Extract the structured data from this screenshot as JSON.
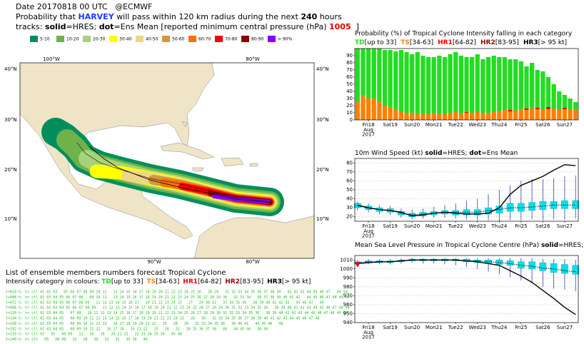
{
  "header": {
    "line1": "Date 20170818 00 UTC   @ECMWF",
    "line2": [
      "Probability that ",
      "HARVEY",
      " will pass within 120 km radius during the next ",
      "240",
      " hours"
    ],
    "line3": [
      "tracks: ",
      "solid",
      "=HRES; ",
      "dot",
      "=Ens Mean [reported minimum central pressure (hPa) ",
      "1005",
      "  ]"
    ]
  },
  "map_legend": [
    {
      "label": "5-10",
      "color": "#008f5c"
    },
    {
      "label": "10-20",
      "color": "#6fb24a"
    },
    {
      "label": "20-30",
      "color": "#a6d27a"
    },
    {
      "label": "30-40",
      "color": "#ffff00"
    },
    {
      "label": "40-50",
      "color": "#ecd68a"
    },
    {
      "label": "50-60",
      "color": "#d9953a"
    },
    {
      "label": "60-70",
      "color": "#ff7000"
    },
    {
      "label": "70-80",
      "color": "#ff0000"
    },
    {
      "label": "80-90",
      "color": "#8b0000"
    },
    {
      "label": "> 90%",
      "color": "#8a00ff"
    }
  ],
  "map": {
    "top_labels": [
      "100°W",
      "80°W"
    ],
    "bottom_labels": [
      "90°W",
      "80°W"
    ],
    "lat_labels": [
      "40°N",
      "30°N",
      "20°N",
      "10°N"
    ]
  },
  "ensemble": {
    "title": "List of ensemble members numbers forecast Tropical Cyclone",
    "legend_prefix": "Intensity category in colours: ",
    "legend": [
      {
        "name": "TD",
        "range": "[up to 33]",
        "color": "#22dd22"
      },
      {
        "name": "TS",
        "range": "[34-63]",
        "color": "#ff8000"
      },
      {
        "name": "HR1",
        "range": "[64-82]",
        "color": "#ff0000"
      },
      {
        "name": "HR2",
        "range": "[83-95]",
        "color": "#990000"
      },
      {
        "name": "HR3",
        "range": "[> 95 kt]",
        "color": "#000000"
      }
    ],
    "rows": [
      "t+024 h: hr ctl 01 02 03   05 06 07 08 09 10 11   13 14 15 16 17 18 19 20 21 22 23 24 25 26   28 29   31 32 33 34 35 36 37 38 39   41 42 43 44 45 46 47   49 50",
      "t+048 h: hr ctl 02 03 04 05 06 07 08   09 10 11   13 14 15 16 17 18 19 20 21 22 23 24 25 26 27 28 29 30   32 33 34   36 37 38 39 40 41 42   44 45 46 47 48 49 50",
      "t+072 h: hr ctl 02 03 04 05 06 07 08 09   11 12 13 14 15 16 17   20 21 22 23 24 25   27   29 30 31   33 34 35 36   38 39 40 41 42 43   45 46 47   49",
      "t+096 h: hr ctl 01 02 03 04 05 06 07 08 09   11 12 13 14 15 16 17 18 19 20 21 22 23 24 25 26 27 28 29 30 31 32 33 34 35 36   38 39 40 41 42 43 44 45 46 47 48 49",
      "t+120 h: hr ctl 02 03 04 05   07 08   10 11 12 13 14 15 16 17 18 19 20 21 22 23 24 25 26 27 28 29 30 31 32 33 34 35 36   38 39 40 41 42 43 44 45 46 47 48 49 50",
      "t+144 h: hr ctl 02 03 04 05   08 09 10 11 12 13 14 15 16 17 18 19 20 21 22 23 24 25   28   30   32 33 34 35 36 37 38 39 40 41 42 43 44 45 46 47 48",
      "t+168 h: hr ctl 02 03 04 05   08 09 10 11 12 13   16 17 18 19 20 21 22   25   28   30   32 33 34 35 36   39 40 41   44 45 46   48",
      "t+192 h: hr ctl 02 03 04 05   08 09 10 11 12   16 17 18   20 21 22   25   28   32   34 35 36 37 38   40   44 45 46   48 49",
      "t+216 h: hr ctl 02   05   08 09   12   16   18   20 21 22   32 33 34 35 36   45 48",
      "t+240 h: hr ctl   05   08 09   12   18   20   22   32   35 36   48"
    ]
  },
  "chart_data": [
    {
      "type": "bar",
      "title": "Probability (%) of Tropical Cyclone Intensity falling in each category",
      "legend": [
        {
          "name": "TD",
          "range": "[up to 33]",
          "color": "#22dd22"
        },
        {
          "name": "TS",
          "range": "[34-63]",
          "color": "#ff8000"
        },
        {
          "name": "HR1",
          "range": "[64-82]",
          "color": "#ff0000"
        },
        {
          "name": "HR2",
          "range": "[83-95]",
          "color": "#990000"
        },
        {
          "name": "HR3",
          "range": "[> 95 kt]",
          "color": "#000000"
        }
      ],
      "stacked": true,
      "x": [
        0,
        6,
        12,
        18,
        24,
        30,
        36,
        42,
        48,
        54,
        60,
        66,
        72,
        78,
        84,
        90,
        96,
        102,
        108,
        114,
        120,
        126,
        132,
        138,
        144,
        150,
        156,
        162,
        168,
        174,
        180,
        186,
        192,
        198,
        204,
        210,
        216,
        222,
        228,
        234,
        240
      ],
      "series": [
        {
          "color": "#ff8000",
          "values": [
            25,
            35,
            30,
            30,
            25,
            20,
            18,
            15,
            12,
            10,
            10,
            8,
            9,
            8,
            10,
            8,
            9,
            10,
            12,
            8,
            10,
            10,
            12,
            10,
            10,
            12,
            12,
            14,
            12,
            13,
            15,
            14,
            16,
            15,
            14,
            15,
            16,
            14,
            15,
            14,
            15
          ]
        },
        {
          "color": "#ff0000",
          "values": [
            0,
            0,
            0,
            0,
            0,
            0,
            0,
            0,
            0,
            0,
            0,
            0,
            0,
            0,
            0,
            0,
            0,
            0,
            0,
            0,
            1,
            0,
            0,
            0,
            0,
            0,
            0,
            0,
            2,
            0,
            0,
            2,
            0,
            2,
            0,
            3,
            0,
            0,
            2,
            0,
            0
          ]
        },
        {
          "color": "#22dd22",
          "values": [
            75,
            65,
            70,
            70,
            75,
            78,
            80,
            81,
            86,
            85,
            82,
            87,
            81,
            80,
            78,
            82,
            79,
            82,
            83,
            82,
            77,
            78,
            80,
            75,
            78,
            78,
            76,
            74,
            71,
            72,
            67,
            59,
            64,
            53,
            54,
            42,
            34,
            26,
            18,
            16,
            10
          ]
        }
      ],
      "xlim": [
        -3,
        243
      ],
      "xticks": [
        {
          "value": 12,
          "label": "Fri18"
        },
        {
          "value": 36,
          "label": "Sat19"
        },
        {
          "value": 60,
          "label": "Sun20",
          "color": "#ff0000"
        },
        {
          "value": 84,
          "label": "Mon21"
        },
        {
          "value": 108,
          "label": "Tue22"
        },
        {
          "value": 132,
          "label": "Wed23"
        },
        {
          "value": 156,
          "label": "Thu24"
        },
        {
          "value": 180,
          "label": "Fri25"
        },
        {
          "value": 204,
          "label": "Sat26"
        },
        {
          "value": 228,
          "label": "Sun27",
          "color": "#ff0000"
        }
      ],
      "x_sub_labels": [
        "Aug",
        "2017"
      ],
      "ylim": [
        0,
        100
      ],
      "yticks": [
        0,
        10,
        20,
        30,
        40,
        50,
        60,
        70,
        80,
        90
      ],
      "grid": false
    },
    {
      "type": "box",
      "title": [
        "10m Wind Speed (kt) ",
        "solid",
        "=HRES; ",
        "dot",
        "=Ens Mean"
      ],
      "x": [
        0,
        12,
        24,
        36,
        48,
        60,
        72,
        84,
        96,
        108,
        120,
        132,
        144,
        156,
        168,
        180,
        192,
        204,
        216,
        228,
        240
      ],
      "series": [
        {
          "color": "#000000",
          "style": "solid",
          "values": [
            33,
            30,
            28,
            27,
            25,
            21,
            22,
            24,
            25,
            24,
            23,
            23,
            24,
            30,
            45,
            55,
            60,
            65,
            72,
            78,
            77
          ]
        },
        {
          "color": "#000000",
          "style": "dotted",
          "values": [
            32,
            30,
            28,
            27,
            24,
            22,
            23,
            24,
            25,
            25,
            25,
            25,
            27,
            28,
            30,
            30,
            31,
            32,
            33,
            33,
            33
          ]
        }
      ],
      "box": {
        "color": "#00e0ee",
        "whisker_color": "#334499",
        "low": [
          27,
          25,
          23,
          22,
          19,
          17,
          18,
          19,
          19,
          18,
          17,
          16,
          16,
          15,
          16,
          16,
          17,
          16,
          17,
          17,
          18
        ],
        "q1": [
          30,
          28,
          26,
          25,
          22,
          20,
          21,
          22,
          23,
          22,
          22,
          22,
          23,
          24,
          26,
          26,
          27,
          28,
          29,
          29,
          29
        ],
        "q3": [
          35,
          32,
          30,
          29,
          26,
          24,
          25,
          26,
          27,
          27,
          28,
          28,
          30,
          32,
          35,
          35,
          36,
          37,
          37,
          38,
          38
        ],
        "high": [
          37,
          35,
          33,
          32,
          29,
          28,
          29,
          31,
          33,
          35,
          38,
          40,
          45,
          50,
          55,
          60,
          62,
          62,
          63,
          65,
          66
        ]
      },
      "xlim": [
        -3,
        243
      ],
      "xticks": [
        {
          "value": 12,
          "label": "Fri18"
        },
        {
          "value": 36,
          "label": "Sat19"
        },
        {
          "value": 60,
          "label": "Sun20",
          "color": "#ff0000"
        },
        {
          "value": 84,
          "label": "Mon21"
        },
        {
          "value": 108,
          "label": "Tue22"
        },
        {
          "value": 132,
          "label": "Wed23"
        },
        {
          "value": 156,
          "label": "Thu24"
        },
        {
          "value": 180,
          "label": "Fri25"
        },
        {
          "value": 204,
          "label": "Sat26"
        },
        {
          "value": 228,
          "label": "Sun27",
          "color": "#ff0000"
        }
      ],
      "x_sub_labels": [
        "Aug",
        "2017"
      ],
      "ylim": [
        15,
        85
      ],
      "yticks": [
        20,
        30,
        40,
        50,
        60,
        70,
        80
      ],
      "grid": true
    },
    {
      "type": "box",
      "title": [
        "Mean Sea Level Pressure in Tropical Cyclone Centre (hPa) ",
        "solid",
        "=HRES; ",
        "dot",
        "=Ens Mean"
      ],
      "x": [
        0,
        12,
        24,
        36,
        48,
        60,
        72,
        84,
        96,
        108,
        120,
        132,
        144,
        156,
        168,
        180,
        192,
        204,
        216,
        228,
        240
      ],
      "series": [
        {
          "color": "#000000",
          "style": "solid",
          "values": [
            1006,
            1007,
            1008,
            1008,
            1009,
            1010,
            1010,
            1010,
            1010,
            1010,
            1009,
            1008,
            1006,
            1004,
            998,
            992,
            985,
            976,
            967,
            957,
            949
          ]
        },
        {
          "color": "#000000",
          "style": "dotted",
          "values": [
            1007,
            1008,
            1008,
            1008,
            1009,
            1010,
            1010,
            1010,
            1010,
            1010,
            1009,
            1009,
            1008,
            1007,
            1006,
            1004,
            1003,
            1001,
            1000,
            998,
            997
          ]
        }
      ],
      "box": {
        "color": "#00e0ee",
        "whisker_color": "#334499",
        "low": [
          1004,
          1005,
          1005,
          1005,
          1006,
          1007,
          1006,
          1006,
          1005,
          1004,
          1002,
          1000,
          997,
          994,
          991,
          987,
          984,
          980,
          978,
          977,
          975
        ],
        "q1": [
          1006,
          1007,
          1007,
          1007,
          1008,
          1009,
          1009,
          1009,
          1009,
          1009,
          1008,
          1007,
          1006,
          1005,
          1004,
          1001,
          1000,
          998,
          996,
          995,
          994
        ],
        "q3": [
          1008,
          1009,
          1009,
          1009,
          1010,
          1011,
          1011,
          1011,
          1011,
          1011,
          1011,
          1010,
          1010,
          1010,
          1009,
          1008,
          1008,
          1007,
          1006,
          1005,
          1004
        ],
        "high": [
          1010,
          1011,
          1011,
          1011,
          1012,
          1012,
          1012,
          1012,
          1012,
          1012,
          1012,
          1012,
          1012,
          1012,
          1012,
          1012,
          1012,
          1011,
          1011,
          1011,
          1010
        ]
      },
      "observed": 1005,
      "observed_color": "#dd0000",
      "xlim": [
        -3,
        243
      ],
      "xticks": [
        {
          "value": 12,
          "label": "Fri18"
        },
        {
          "value": 36,
          "label": "Sat19"
        },
        {
          "value": 60,
          "label": "Sun20",
          "color": "#ff0000"
        },
        {
          "value": 84,
          "label": "Mon21"
        },
        {
          "value": 108,
          "label": "Tue22"
        },
        {
          "value": 132,
          "label": "Wed23"
        },
        {
          "value": 156,
          "label": "Thu24"
        },
        {
          "value": 180,
          "label": "Fri25"
        },
        {
          "value": 204,
          "label": "Sat26"
        },
        {
          "value": 228,
          "label": "Sun27",
          "color": "#ff0000"
        }
      ],
      "x_sub_labels": [
        "Aug",
        "2017"
      ],
      "ylim": [
        940,
        1015
      ],
      "yticks": [
        940,
        950,
        960,
        970,
        980,
        990,
        1000,
        1010
      ],
      "grid": true
    }
  ]
}
